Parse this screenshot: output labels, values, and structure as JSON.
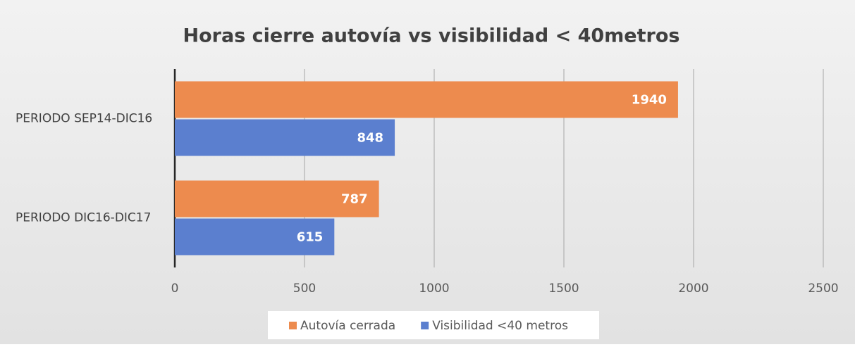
{
  "chart_data": {
    "type": "bar",
    "orientation": "horizontal",
    "title": "Horas cierre autovía vs visibilidad < 40metros",
    "categories": [
      "PERIODO SEP14-DIC16",
      "PERIODO DIC16-DIC17"
    ],
    "series": [
      {
        "name": "Autovía cerrada",
        "color": "#ed8b4e",
        "values": [
          1940,
          787
        ]
      },
      {
        "name": "Visibilidad <40 metros",
        "color": "#5b7fcf",
        "values": [
          848,
          615
        ]
      }
    ],
    "xlim": [
      0,
      2500
    ],
    "xticks": [
      0,
      500,
      1000,
      1500,
      2000,
      2500
    ],
    "grid": true,
    "legend": "bottom"
  }
}
